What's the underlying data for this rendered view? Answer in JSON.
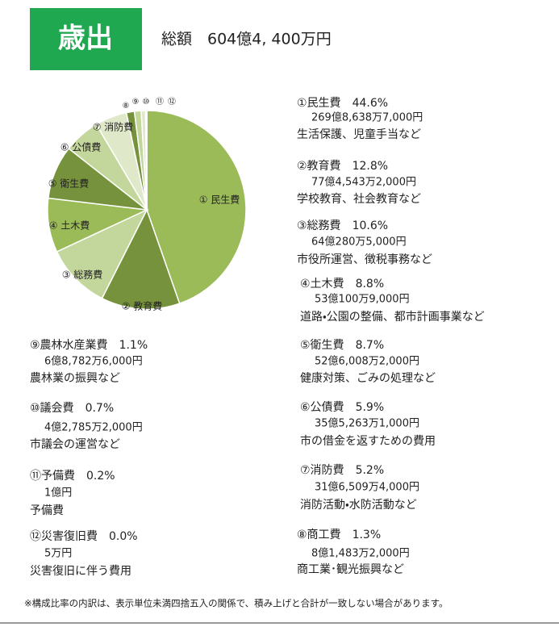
{
  "header": {
    "title": "歳出",
    "total": "総額　604億4, 400万円"
  },
  "chart_data": {
    "type": "pie",
    "categories": [
      "① 民生費",
      "② 教育費",
      "③ 総務費",
      "④ 土木費",
      "⑤ 衛生費",
      "⑥ 公債費",
      "⑦ 消防費",
      "⑧",
      "⑨",
      "⑩",
      "⑪",
      "⑫"
    ],
    "values": [
      44.6,
      12.8,
      10.6,
      8.8,
      8.7,
      5.9,
      5.2,
      1.3,
      1.1,
      0.7,
      0.2,
      0.0
    ],
    "value_labels": [
      "44.6%",
      "12.8%",
      "10.6%",
      "8.8%",
      "8.7%",
      "5.9%",
      "5.2%",
      "1.3%",
      "1.1%",
      "0.7%",
      "0.2%",
      "0.0%"
    ],
    "colors": [
      "#9bbb59",
      "#76923c",
      "#c3d69b",
      "#9bbb59",
      "#76923c",
      "#c3d69b",
      "#dfe8c9",
      "#76923c",
      "#c3d69b",
      "#dfe8c9",
      "#9bbb59",
      "#76923c"
    ]
  },
  "items": [
    {
      "name": "①民生費",
      "amount": "269億8,638万7,000円",
      "note": "生活保護、児童手当など"
    },
    {
      "name": "②教育費",
      "amount": "77億4,543万2,000円",
      "note": "学校教育、社会教育など"
    },
    {
      "name": "③総務費",
      "amount": "64億280万5,000円",
      "note": "市役所運営、徴税事務など"
    },
    {
      "name": "④土木費",
      "amount": "53億100万9,000円",
      "note": "道路・公園の整備、都市計画事業など"
    },
    {
      "name": "⑤衛生費",
      "amount": "52億6,008万2,000円",
      "note": "健康対策、ごみの処理など"
    },
    {
      "name": "⑥公債費",
      "amount": "35億5,263万1,000円",
      "note": "市の借金を返すための費用"
    },
    {
      "name": "⑦消防費",
      "amount": "31億6,509万4,000円",
      "note": "消防活動・水防活動など"
    },
    {
      "name": "⑧商工費",
      "amount": "8億1,483万2,000円",
      "note": "商工業･観光振興など"
    },
    {
      "name": "⑨農林水産業費",
      "amount": "6億8,782万6,000円",
      "note": "農林業の振興など"
    },
    {
      "name": "⑩議会費",
      "amount": "4億2,785万2,000円",
      "note": "市議会の運営など"
    },
    {
      "name": "⑪予備費",
      "amount": "1億円",
      "note": "予備費"
    },
    {
      "name": "⑫災害復旧費",
      "amount": "5万円",
      "note": "災害復旧に伴う費用"
    }
  ],
  "footnote": "※構成比率の内訳は、表示単位未満四捨五入の関係で、積み上げと合計が一致しない場合があります。"
}
